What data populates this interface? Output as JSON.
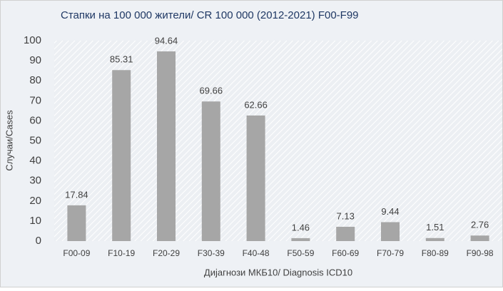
{
  "chart_data": {
    "type": "bar",
    "title": "Стапки на 100 000 жители/  CR 100 000  (2012-2021) F00-F99",
    "categories": [
      "F00-09",
      "F10-19",
      "F20-29",
      "F30-39",
      "F40-48",
      "F50-59",
      "F60-69",
      "F70-79",
      "F80-89",
      "F90-98"
    ],
    "values": [
      17.84,
      85.31,
      94.64,
      69.66,
      62.66,
      1.46,
      7.13,
      9.44,
      1.51,
      2.76
    ],
    "color": "#a6a6a6",
    "x_label": "Дијагнози МКБ10/ Diagnosis ICD10",
    "y_label": "Случаи/Cases",
    "ylim": [
      0,
      100
    ],
    "yticks": [
      0,
      10,
      20,
      30,
      40,
      50,
      60,
      70,
      80,
      90,
      100
    ]
  }
}
